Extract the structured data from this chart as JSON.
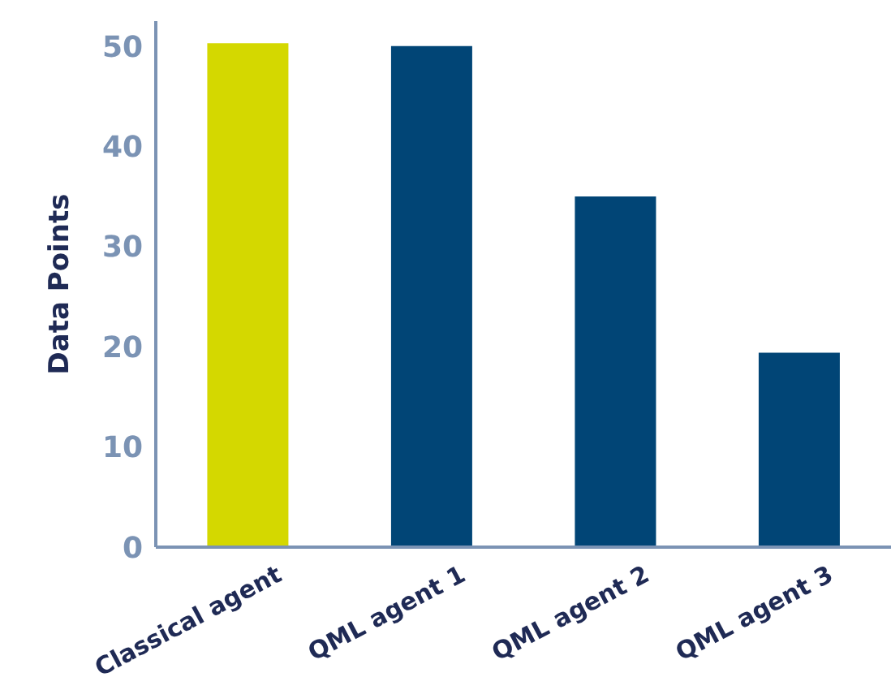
{
  "chart_data": {
    "type": "bar",
    "ylabel": "Data Points",
    "categories": [
      "Classical agent",
      "QML agent 1",
      "QML agent 2",
      "QML agent 3"
    ],
    "values": [
      50.3,
      50,
      35,
      19.4
    ],
    "colors": [
      "#d4d800",
      "#014576",
      "#014576",
      "#014576"
    ],
    "ylim": [
      0,
      52.5
    ],
    "yticks": [
      0,
      10,
      20,
      30,
      40,
      50
    ],
    "grid": false,
    "legend": false
  }
}
